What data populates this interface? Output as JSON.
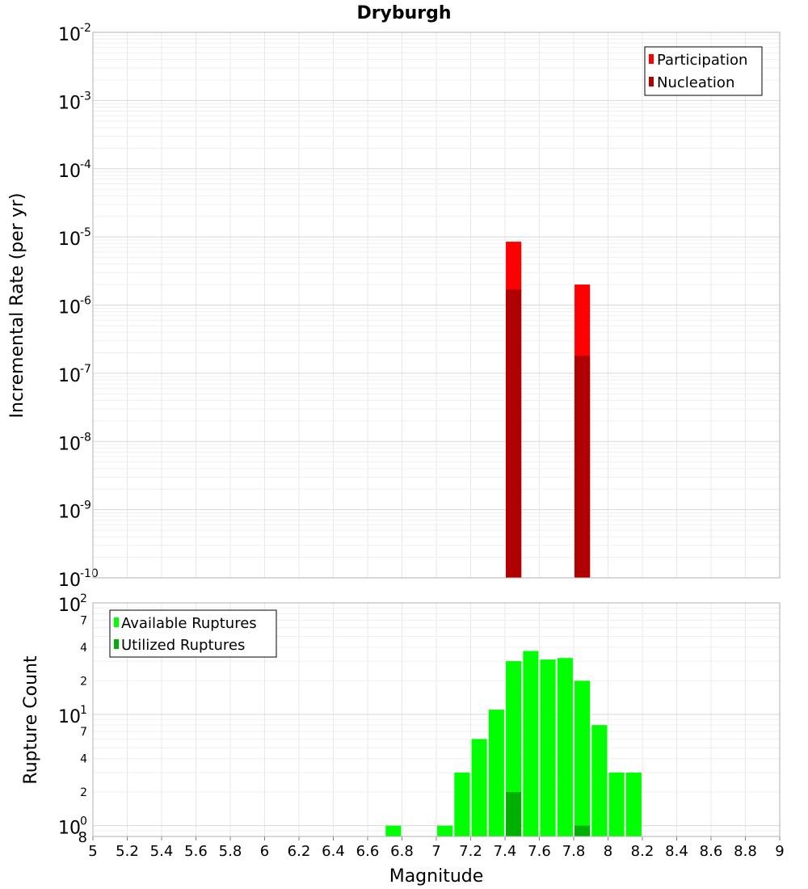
{
  "chart_data": [
    {
      "type": "bar",
      "title": "Dryburgh",
      "xlabel": "",
      "ylabel": "Incremental Rate (per yr)",
      "yscale": "log",
      "ylim": [
        1e-10,
        0.01
      ],
      "xlim": [
        5,
        9
      ],
      "y_exponents": [
        -10,
        -9,
        -8,
        -7,
        -6,
        -5,
        -4,
        -3,
        -2
      ],
      "grid": true,
      "legend_position": "top-right",
      "series": [
        {
          "name": "Participation",
          "color": "#ff0000",
          "x": [
            7.45,
            7.85
          ],
          "values": [
            8.5e-06,
            2e-06
          ]
        },
        {
          "name": "Nucleation",
          "color": "#b00000",
          "x": [
            7.45,
            7.85
          ],
          "values": [
            1.7e-06,
            1.8e-07
          ]
        }
      ],
      "bar_width": 0.09
    },
    {
      "type": "bar",
      "title": "",
      "xlabel": "Magnitude",
      "ylabel": "Rupture Count",
      "yscale": "log",
      "ylim": [
        0.8,
        100
      ],
      "xlim": [
        5,
        9
      ],
      "x_ticks": [
        "5",
        "5.2",
        "5.4",
        "5.6",
        "5.8",
        "6",
        "6.2",
        "6.4",
        "6.6",
        "6.8",
        "7",
        "7.2",
        "7.4",
        "7.6",
        "7.8",
        "8",
        "8.2",
        "8.4",
        "8.6",
        "8.8",
        "9"
      ],
      "y_major_ticks": [
        {
          "value": 1,
          "base": "10",
          "exp": "0"
        },
        {
          "value": 10,
          "base": "10",
          "exp": "1"
        },
        {
          "value": 100,
          "base": "10",
          "exp": "2"
        }
      ],
      "y_minor_ticks": [
        {
          "value": 0.8,
          "label": "8"
        },
        {
          "value": 2,
          "label": "2"
        },
        {
          "value": 4,
          "label": "4"
        },
        {
          "value": 7,
          "label": "7"
        },
        {
          "value": 20,
          "label": "2"
        },
        {
          "value": 40,
          "label": "4"
        },
        {
          "value": 70,
          "label": "7"
        }
      ],
      "grid": true,
      "legend_position": "top-left",
      "series": [
        {
          "name": "Available Ruptures",
          "color": "#00ff00",
          "x": [
            6.75,
            7.05,
            7.15,
            7.25,
            7.35,
            7.45,
            7.55,
            7.65,
            7.75,
            7.85,
            7.95,
            8.05,
            8.15
          ],
          "values": [
            1,
            1,
            3,
            6,
            11,
            30,
            37,
            31,
            32,
            20,
            8,
            3,
            3
          ]
        },
        {
          "name": "Utilized Ruptures",
          "color": "#00b000",
          "x": [
            7.45,
            7.85
          ],
          "values": [
            2,
            1
          ]
        }
      ],
      "bar_width": 0.09
    }
  ]
}
